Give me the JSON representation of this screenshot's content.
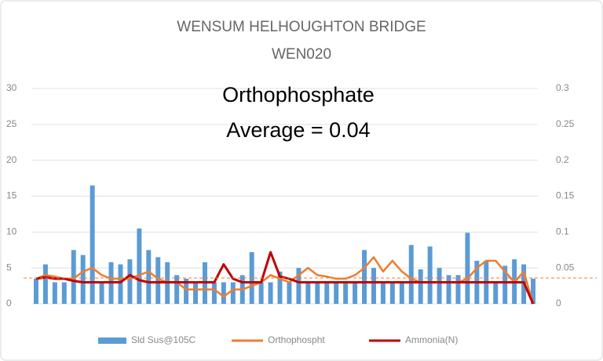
{
  "chart_data": {
    "type": "bar_line",
    "title": "WENSUM HELHOUGHTON BRIDGE",
    "subtitle": "WEN020",
    "annotation": [
      "Orthophosphate",
      "Average = 0.04"
    ],
    "average_line": 0.036,
    "average_color": "#ed7d31",
    "categories": [
      null,
      null,
      null,
      null,
      null,
      null,
      null,
      null,
      null,
      null,
      null,
      null,
      null,
      null,
      null,
      null,
      null,
      null,
      null,
      null,
      null,
      null,
      null,
      null,
      null,
      null,
      null,
      null,
      null,
      null,
      null,
      null,
      null,
      null,
      null,
      null,
      null,
      null,
      null,
      null,
      null,
      null,
      null,
      null,
      null,
      null,
      null,
      null,
      null,
      null,
      null,
      null,
      null,
      null
    ],
    "series": [
      {
        "name": "Sld Sus@105C",
        "color": "#5b9bd5",
        "kind": "bar",
        "values": [
          3.5,
          5.5,
          3,
          3,
          7.5,
          6.8,
          16.5,
          3,
          5.8,
          5.5,
          6.2,
          10.5,
          7.5,
          6.5,
          5.8,
          4,
          3.5,
          3,
          5.8,
          3,
          3,
          3,
          4,
          7.2,
          3,
          3,
          4.5,
          3,
          5,
          3,
          3,
          3,
          3,
          3,
          3,
          7.5,
          5,
          3,
          3,
          3,
          8.2,
          4.8,
          8,
          5,
          4,
          4,
          9.9,
          6,
          6,
          3,
          5.3,
          6.2,
          5.5,
          3.5
        ]
      },
      {
        "name": "Orthophospht",
        "color": "#ed7d31",
        "kind": "line",
        "axis": "y2",
        "values": [
          0.035,
          0.04,
          0.038,
          0.035,
          0.035,
          0.045,
          0.05,
          0.04,
          0.035,
          0.035,
          0.035,
          0.04,
          0.045,
          0.035,
          0.03,
          0.03,
          0.02,
          0.02,
          0.02,
          0.02,
          0.01,
          0.02,
          0.02,
          0.025,
          0.03,
          0.04,
          0.035,
          0.03,
          0.04,
          0.05,
          0.04,
          0.038,
          0.035,
          0.035,
          0.04,
          0.05,
          0.065,
          0.045,
          0.06,
          0.045,
          0.035,
          0.03,
          0.03,
          0.03,
          0.03,
          0.03,
          0.035,
          0.05,
          0.06,
          0.06,
          0.045,
          0.03,
          0.045,
          0
        ]
      },
      {
        "name": "Ammonia(N)",
        "color": "#c00000",
        "kind": "line",
        "axis": "y2",
        "values": [
          0.035,
          0.037,
          0.035,
          0.035,
          0.032,
          0.03,
          0.03,
          0.03,
          0.03,
          0.03,
          0.04,
          0.033,
          0.03,
          0.03,
          0.03,
          0.03,
          0.03,
          0.03,
          0.03,
          0.03,
          0.055,
          0.035,
          0.03,
          0.03,
          0.03,
          0.072,
          0.038,
          0.035,
          0.03,
          0.03,
          0.03,
          0.03,
          0.03,
          0.03,
          0.03,
          0.03,
          0.03,
          0.03,
          0.03,
          0.03,
          0.03,
          0.03,
          0.03,
          0.03,
          0.03,
          0.03,
          0.03,
          0.03,
          0.03,
          0.03,
          0.03,
          0.03,
          0.03,
          0
        ]
      }
    ],
    "ylim": [
      0,
      30
    ],
    "yticks": [
      0,
      5,
      10,
      15,
      20,
      25,
      30
    ],
    "y2lim": [
      0,
      0.3
    ],
    "y2ticks": [
      0,
      0.05,
      0.1,
      0.15,
      0.2,
      0.25,
      0.3
    ],
    "grid": true,
    "legend": "bottom"
  }
}
